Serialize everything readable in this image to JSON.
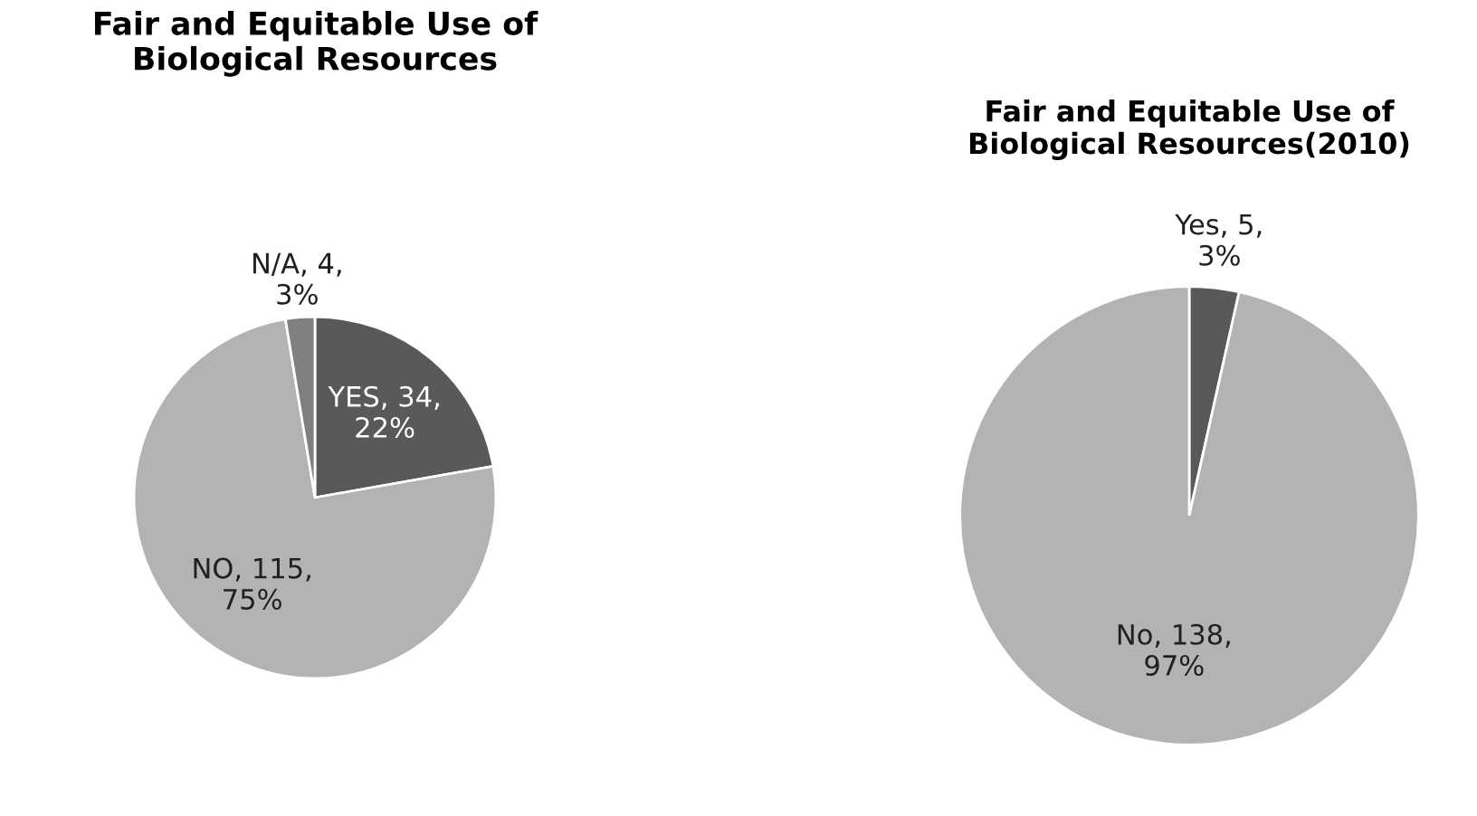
{
  "chart_data": [
    {
      "type": "pie",
      "title": "Fair and Equitable Use of Biological Resources",
      "categories": [
        "YES, 34, 22%",
        "NO, 115, 75%",
        "N/A, 4, 3%"
      ],
      "values": [
        34,
        115,
        4
      ],
      "colors": [
        "#595959",
        "#b3b3b3",
        "#808080"
      ]
    },
    {
      "type": "pie",
      "title": "Fair and Equitable Use of Biological Resources(2010)",
      "categories": [
        "Yes, 5, 3%",
        "No, 138, 97%"
      ],
      "values": [
        5,
        138
      ],
      "colors": [
        "#595959",
        "#b3b3b3"
      ]
    }
  ]
}
